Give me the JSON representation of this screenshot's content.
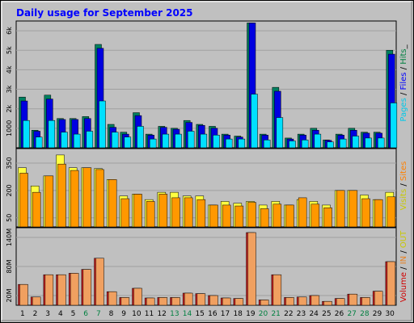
{
  "chart_data": {
    "type": "bar",
    "title": "Daily usage for September 2025",
    "categories": [
      "1",
      "2",
      "3",
      "4",
      "5",
      "6",
      "7",
      "8",
      "9",
      "10",
      "11",
      "12",
      "13",
      "14",
      "15",
      "16",
      "17",
      "18",
      "19",
      "20",
      "21",
      "22",
      "23",
      "24",
      "25",
      "26",
      "27",
      "28",
      "29",
      "30"
    ],
    "weekend_days": [
      "6",
      "7",
      "13",
      "14",
      "20",
      "21",
      "27",
      "28"
    ],
    "grid": true,
    "panels": [
      {
        "id": "hits",
        "ylim": [
          0,
          6500
        ],
        "yticks": [
          1000,
          2000,
          3000,
          4000,
          5000,
          6000
        ],
        "ytick_labels": [
          "1000",
          "2k",
          "3k",
          "4k",
          "5k",
          "6k"
        ],
        "legend_parts": [
          {
            "text": "Pages",
            "color": "#00c8e8"
          },
          {
            "text": " / ",
            "color": "#000000"
          },
          {
            "text": "Files",
            "color": "#0000ff"
          },
          {
            "text": " / ",
            "color": "#000000"
          },
          {
            "text": "Hits",
            "color": "#008040"
          },
          {
            "text": "_",
            "color": "#000000"
          }
        ],
        "series": [
          {
            "name": "Hits",
            "color": "#008060",
            "values": [
              2600,
              900,
              2700,
              1500,
              1500,
              1600,
              5300,
              1200,
              800,
              1800,
              700,
              1100,
              1000,
              1400,
              1200,
              1100,
              700,
              600,
              6400,
              700,
              3100,
              500,
              700,
              1000,
              400,
              700,
              1000,
              800,
              800,
              5000
            ]
          },
          {
            "name": "Files",
            "color": "#0000e0",
            "values": [
              2400,
              850,
              2500,
              1450,
              1450,
              1500,
              5100,
              1050,
              700,
              1650,
              650,
              1050,
              950,
              1300,
              1150,
              1000,
              650,
              550,
              6400,
              650,
              2900,
              450,
              650,
              900,
              380,
              650,
              900,
              750,
              750,
              4800
            ]
          },
          {
            "name": "Pages",
            "color": "#00e0ff",
            "values": [
              1400,
              550,
              1400,
              800,
              700,
              850,
              2400,
              800,
              550,
              1100,
              450,
              700,
              700,
              850,
              700,
              650,
              450,
              450,
              2750,
              400,
              1550,
              350,
              400,
              700,
              300,
              450,
              600,
              500,
              500,
              2300
            ]
          }
        ]
      },
      {
        "id": "visits",
        "ylim": [
          0,
          430
        ],
        "yticks": [
          50,
          200,
          350
        ],
        "ytick_labels": [
          "50",
          "200",
          "350"
        ],
        "legend_parts": [
          {
            "text": "Visits",
            "color": "#c8c800"
          },
          {
            "text": " / ",
            "color": "#000000"
          },
          {
            "text": "Sites",
            "color": "#ff8000"
          }
        ],
        "series": [
          {
            "name": "Visits",
            "color": "#ffff40",
            "values": [
              325,
              225,
              280,
              395,
              325,
              325,
              320,
              260,
              170,
              180,
              150,
              190,
              190,
              170,
              170,
              120,
              140,
              130,
              140,
              120,
              140,
              120,
              150,
              140,
              120,
              200,
              200,
              175,
              150,
              190
            ]
          },
          {
            "name": "Sites",
            "color": "#ff9800",
            "values": [
              295,
              190,
              280,
              345,
              310,
              325,
              315,
              260,
              155,
              180,
              140,
              180,
              160,
              160,
              150,
              120,
              120,
              115,
              135,
              100,
              125,
              120,
              160,
              125,
              105,
              200,
              200,
              155,
              150,
              165
            ]
          }
        ]
      },
      {
        "id": "volume",
        "ylim": [
          0,
          160
        ],
        "yticks": [
          20,
          80,
          140
        ],
        "ytick_labels": [
          "20M",
          "80M",
          "140M"
        ],
        "legend_parts": [
          {
            "text": "Volume",
            "color": "#d00000"
          },
          {
            "text": " / ",
            "color": "#000000"
          },
          {
            "text": "IN",
            "color": "#e88020"
          },
          {
            "text": " / ",
            "color": "#000000"
          },
          {
            "text": "OUT",
            "color": "#c8c800"
          }
        ],
        "series": [
          {
            "name": "Volume",
            "color": "#d02020",
            "values": [
              43,
              17,
              63,
              63,
              66,
              74,
              97,
              28,
              16,
              35,
              15,
              16,
              16,
              25,
              24,
              20,
              15,
              14,
              150,
              11,
              63,
              16,
              17,
              20,
              8,
              14,
              23,
              16,
              29,
              90
            ]
          },
          {
            "name": "IN",
            "color": "#f0a060",
            "values": [
              43,
              17,
              63,
              63,
              66,
              74,
              97,
              28,
              16,
              35,
              15,
              16,
              16,
              25,
              24,
              20,
              15,
              14,
              150,
              11,
              63,
              16,
              17,
              20,
              8,
              14,
              23,
              16,
              29,
              90
            ]
          }
        ]
      }
    ]
  },
  "colors": {
    "frame_bg": "#c0c0c0",
    "plot_bg": "#c0c0c0",
    "grid": "#a0a0a0",
    "title": "#0000ff",
    "weekday_label": "#000000",
    "weekend_label": "#008040"
  }
}
